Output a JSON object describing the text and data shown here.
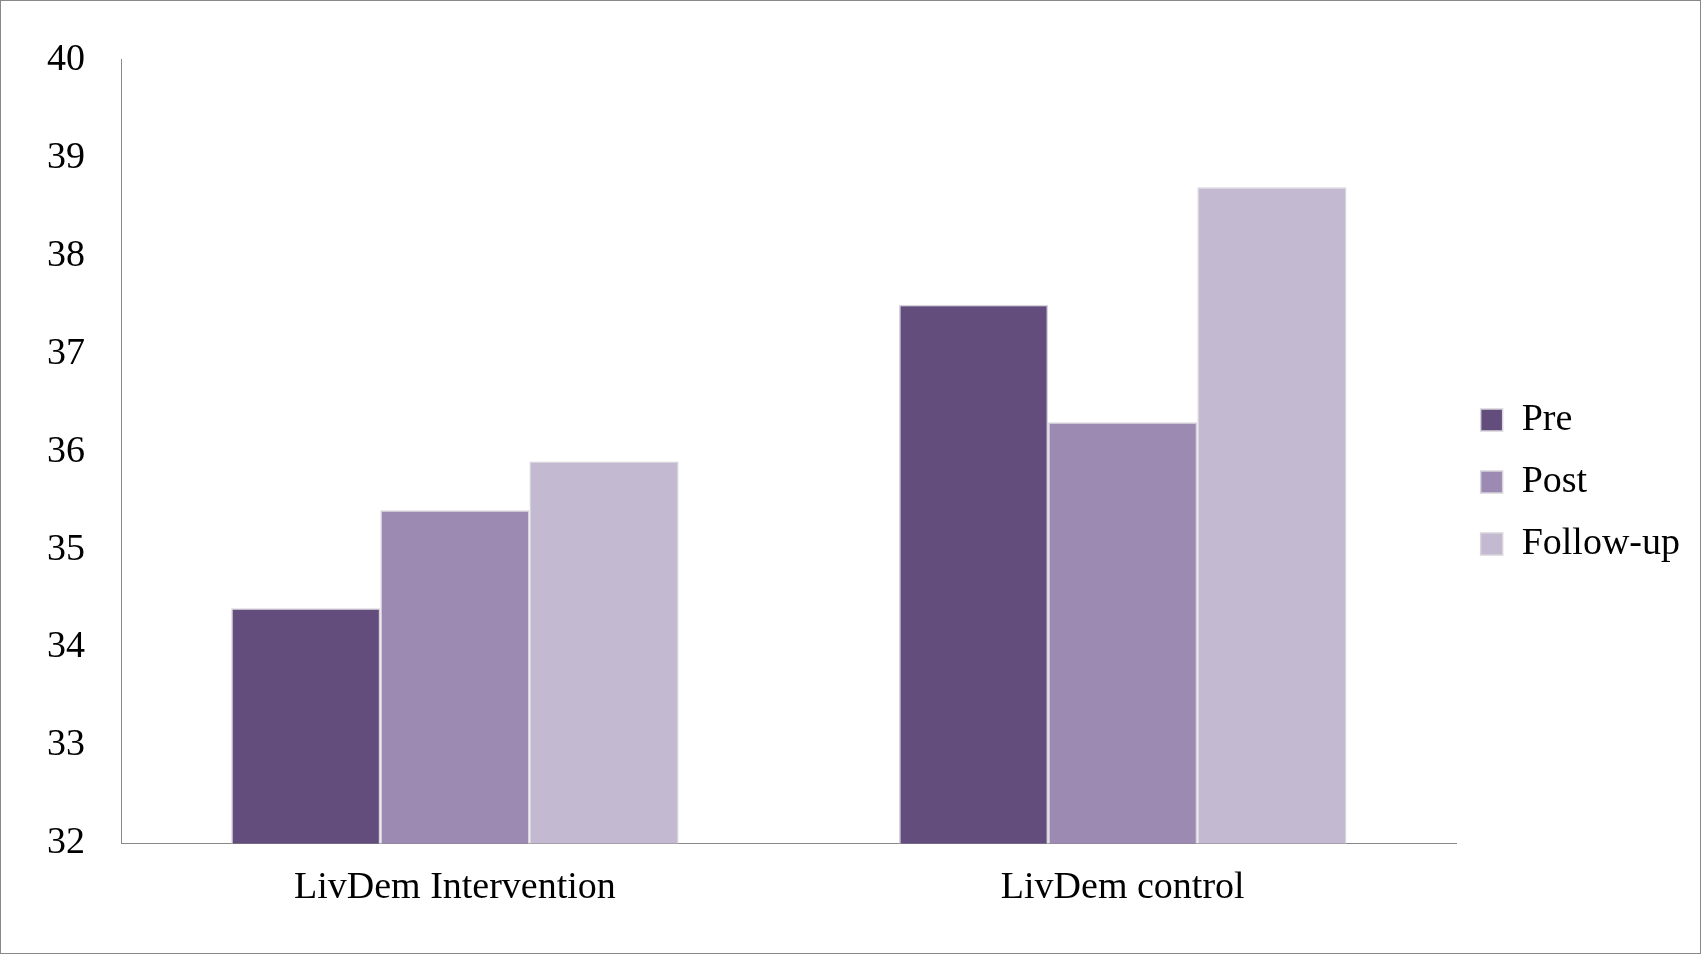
{
  "chart_data": {
    "type": "bar",
    "categories": [
      "LivDem Intervention",
      "LivDem control"
    ],
    "series": [
      {
        "name": "Pre",
        "color": "#634d7d",
        "values": [
          34.4,
          37.5
        ]
      },
      {
        "name": "Post",
        "color": "#9c8ab3",
        "values": [
          35.4,
          36.3
        ]
      },
      {
        "name": "Follow-up",
        "color": "#c3b9d0",
        "values": [
          35.9,
          38.7
        ]
      }
    ],
    "ylim": [
      32,
      40
    ],
    "yticks": [
      32,
      33,
      34,
      35,
      36,
      37,
      38,
      39,
      40
    ],
    "grid": false,
    "legend": "right"
  }
}
